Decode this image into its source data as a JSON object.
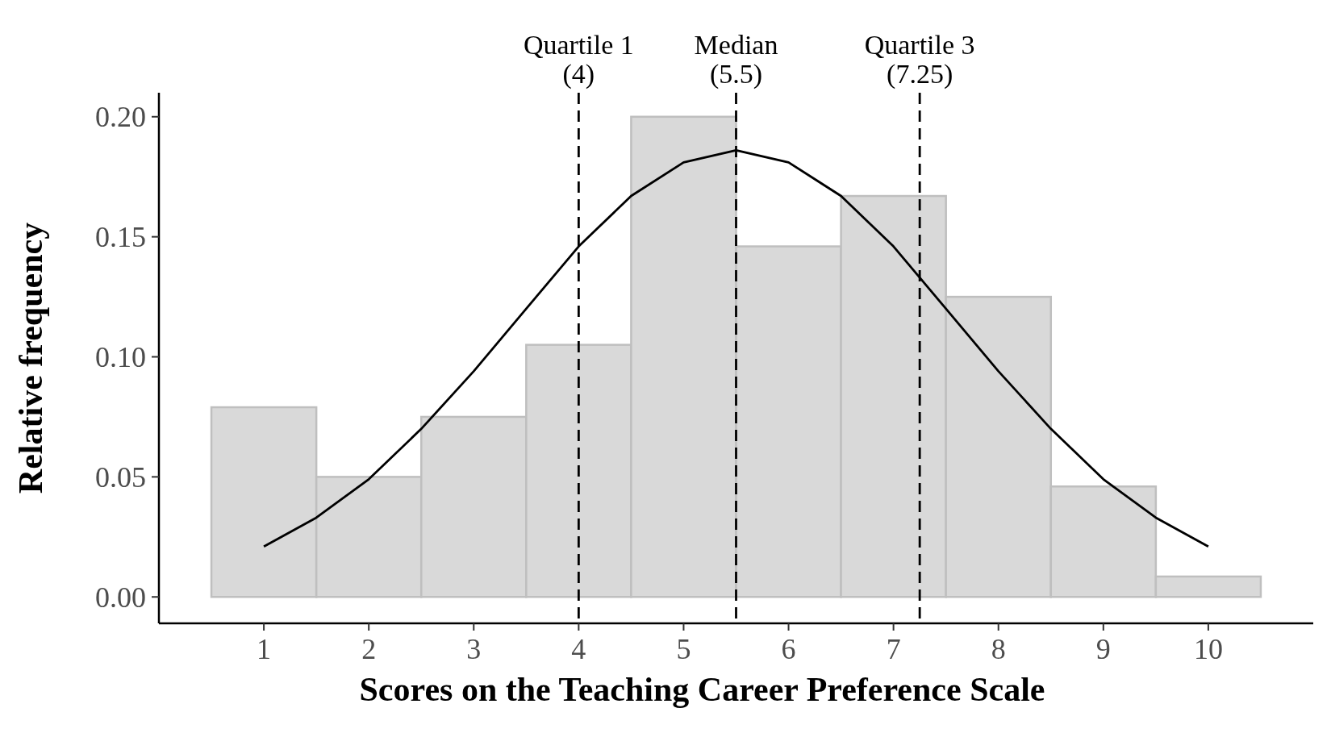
{
  "chart_data": {
    "type": "histogram",
    "xlabel": "Scores on the Teaching Career Preference Scale",
    "ylabel": "Relative frequency",
    "series": [
      {
        "color": "#d9d9d9",
        "bins": [
          0.5,
          1.5,
          2.5,
          3.5,
          4.5,
          5.5,
          6.5,
          7.5,
          8.5,
          9.5,
          10.5
        ],
        "values": [
          0.079,
          0.05,
          0.075,
          0.105,
          0.2,
          0.146,
          0.167,
          0.125,
          0.046,
          0.0085
        ]
      },
      {
        "type": "line",
        "color": "#000000",
        "x": [
          1,
          1.5,
          2,
          2.5,
          3,
          3.5,
          4,
          4.5,
          5,
          5.5,
          6,
          6.5,
          7,
          7.5,
          8,
          8.5,
          9,
          9.5,
          10
        ],
        "values": [
          0.021,
          0.033,
          0.049,
          0.07,
          0.094,
          0.12,
          0.146,
          0.167,
          0.181,
          0.186,
          0.181,
          0.167,
          0.146,
          0.12,
          0.094,
          0.07,
          0.049,
          0.033,
          0.021
        ]
      }
    ],
    "xlim": [
      0,
      11
    ],
    "xticks": [
      1,
      2,
      3,
      4,
      5,
      6,
      7,
      8,
      9,
      10
    ],
    "ylim": [
      -0.011,
      0.21
    ],
    "yticks": [
      {
        "value": 0,
        "label": "0.00"
      },
      {
        "value": 0.05,
        "label": "0.05"
      },
      {
        "value": 0.1,
        "label": "0.10"
      },
      {
        "value": 0.15,
        "label": "0.15"
      },
      {
        "value": 0.2,
        "label": "0.20"
      }
    ],
    "ref_lines": [
      {
        "axis": "x",
        "value": 4,
        "label": "Quartile 1\n(4)",
        "line_style": "dashed"
      },
      {
        "axis": "x",
        "value": 5.5,
        "label": "Median\n(5.5)",
        "line_style": "dashed"
      },
      {
        "axis": "x",
        "value": 7.25,
        "label": "Quartile 3\n(7.25)",
        "line_style": "dashed"
      }
    ],
    "grid": false
  }
}
